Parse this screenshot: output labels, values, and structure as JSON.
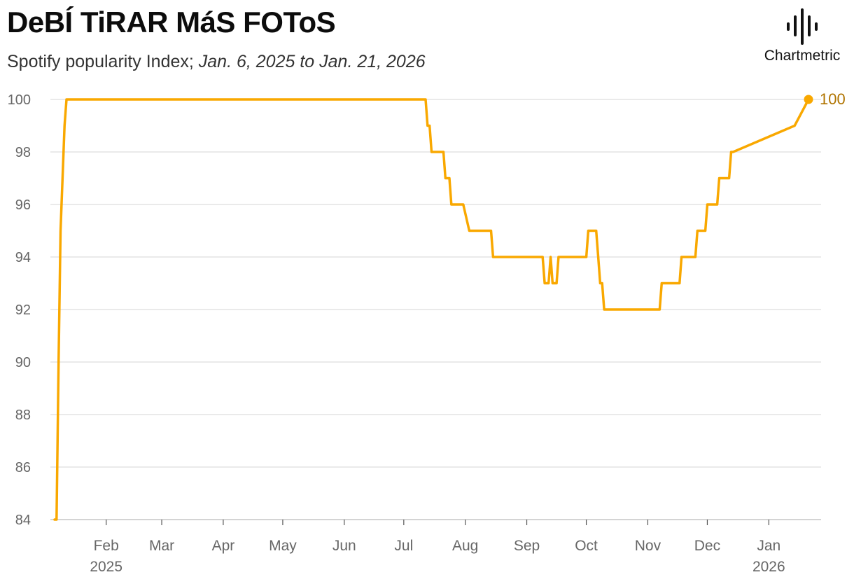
{
  "header": {
    "title": "DeBÍ TiRAR MáS FOToS",
    "subtitle_main": "Spotify popularity Index; ",
    "subtitle_range": "Jan. 6, 2025 to Jan. 21, 2026"
  },
  "brand": {
    "name": "Chartmetric",
    "icon": "chartmetric-waveform-icon"
  },
  "colors": {
    "line": "#f9a800",
    "end_label": "#b07400",
    "grid": "#dddddd",
    "axis_text": "#666666"
  },
  "chart_data": {
    "type": "line",
    "title": "DeBÍ TiRAR MáS FOToS",
    "subtitle": "Spotify popularity Index; Jan. 6, 2025 to Jan. 21, 2026",
    "xlim": [
      "2025-01-06",
      "2026-01-21"
    ],
    "ylim": [
      84,
      100
    ],
    "y_ticks": [
      84,
      86,
      88,
      90,
      92,
      94,
      96,
      98,
      100
    ],
    "x_ticks": [
      {
        "date": "2025-02-01",
        "label": "Feb",
        "sublabel": "2025"
      },
      {
        "date": "2025-03-01",
        "label": "Mar",
        "sublabel": ""
      },
      {
        "date": "2025-04-01",
        "label": "Apr",
        "sublabel": ""
      },
      {
        "date": "2025-05-01",
        "label": "May",
        "sublabel": ""
      },
      {
        "date": "2025-06-01",
        "label": "Jun",
        "sublabel": ""
      },
      {
        "date": "2025-07-01",
        "label": "Jul",
        "sublabel": ""
      },
      {
        "date": "2025-08-01",
        "label": "Aug",
        "sublabel": ""
      },
      {
        "date": "2025-09-01",
        "label": "Sep",
        "sublabel": ""
      },
      {
        "date": "2025-10-01",
        "label": "Oct",
        "sublabel": ""
      },
      {
        "date": "2025-11-01",
        "label": "Nov",
        "sublabel": ""
      },
      {
        "date": "2025-12-01",
        "label": "Dec",
        "sublabel": ""
      },
      {
        "date": "2026-01-01",
        "label": "Jan",
        "sublabel": "2026"
      }
    ],
    "grid": true,
    "end_label": "100",
    "series": [
      {
        "values": [
          [
            "2025-01-06",
            84
          ],
          [
            "2025-01-07",
            84
          ],
          [
            "2025-01-08",
            90
          ],
          [
            "2025-01-09",
            95
          ],
          [
            "2025-01-11",
            99
          ],
          [
            "2025-01-12",
            100
          ],
          [
            "2025-07-12",
            100
          ],
          [
            "2025-07-13",
            99
          ],
          [
            "2025-07-14",
            99
          ],
          [
            "2025-07-15",
            98
          ],
          [
            "2025-07-21",
            98
          ],
          [
            "2025-07-22",
            97
          ],
          [
            "2025-07-24",
            97
          ],
          [
            "2025-07-25",
            96
          ],
          [
            "2025-07-31",
            96
          ],
          [
            "2025-08-03",
            95
          ],
          [
            "2025-08-14",
            95
          ],
          [
            "2025-08-15",
            94
          ],
          [
            "2025-09-09",
            94
          ],
          [
            "2025-09-10",
            93
          ],
          [
            "2025-09-12",
            93
          ],
          [
            "2025-09-13",
            94
          ],
          [
            "2025-09-14",
            93
          ],
          [
            "2025-09-16",
            93
          ],
          [
            "2025-09-17",
            94
          ],
          [
            "2025-10-01",
            94
          ],
          [
            "2025-10-02",
            95
          ],
          [
            "2025-10-06",
            95
          ],
          [
            "2025-10-07",
            94
          ],
          [
            "2025-10-08",
            93
          ],
          [
            "2025-10-09",
            93
          ],
          [
            "2025-10-10",
            92
          ],
          [
            "2025-11-07",
            92
          ],
          [
            "2025-11-08",
            93
          ],
          [
            "2025-11-17",
            93
          ],
          [
            "2025-11-18",
            94
          ],
          [
            "2025-11-25",
            94
          ],
          [
            "2025-11-26",
            95
          ],
          [
            "2025-11-30",
            95
          ],
          [
            "2025-12-01",
            96
          ],
          [
            "2025-12-06",
            96
          ],
          [
            "2025-12-07",
            97
          ],
          [
            "2025-12-12",
            97
          ],
          [
            "2025-12-13",
            98
          ],
          [
            "2025-12-14",
            98
          ],
          [
            "2026-01-14",
            99
          ],
          [
            "2026-01-21",
            100
          ]
        ]
      }
    ]
  }
}
